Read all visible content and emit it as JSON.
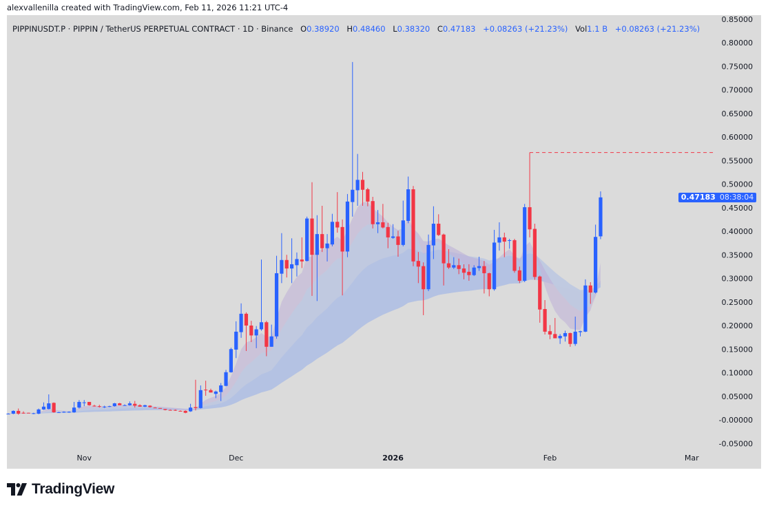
{
  "credit": "alexvallenilla created with TradingView.com, Feb 11, 2026 11:21 UTC-4",
  "legend": {
    "symbol": "PIPPINUSDT.P · PIPPIN / TetherUS PERPETUAL CONTRACT · 1D · Binance",
    "o_label": "O",
    "o": "0.38920",
    "h_label": "H",
    "h": "0.48460",
    "l_label": "L",
    "l": "0.38320",
    "c_label": "C",
    "c": "0.47183",
    "change": "+0.08263 (+21.23%)",
    "vol_label": "Vol",
    "vol": "1.1 B",
    "vol_change": "+0.08263 (+21.23%)"
  },
  "price_tag": {
    "price": "0.47183",
    "countdown": "08:38:04"
  },
  "logo": {
    "text": "TradingView"
  },
  "colors": {
    "up": "#2962ff",
    "down": "#f23645",
    "background": "#dbdbdb",
    "band": "#a9bbe6",
    "band_bear": "#c9a9d2",
    "marker": "#f23645"
  },
  "chart_data": {
    "type": "candlestick",
    "title": "",
    "ylim": [
      -0.07,
      0.85
    ],
    "grid": false,
    "high_marker": 0.567,
    "y_ticks": [
      "0.85000",
      "0.80000",
      "0.75000",
      "0.70000",
      "0.65000",
      "0.60000",
      "0.55000",
      "0.50000",
      "0.45000",
      "0.40000",
      "0.35000",
      "0.30000",
      "0.25000",
      "0.20000",
      "0.15000",
      "0.10000",
      "0.05000",
      "-0.00000",
      "-0.05000"
    ],
    "x_ticks": [
      {
        "label": "Nov",
        "date": "2025-11-01"
      },
      {
        "label": "Dec",
        "date": "2025-12-01"
      },
      {
        "label": "2026",
        "date": "2026-01-01"
      },
      {
        "label": "Feb",
        "date": "2026-02-01"
      },
      {
        "label": "Mar",
        "date": "2026-03-01"
      }
    ],
    "columns": [
      "date",
      "open",
      "high",
      "low",
      "close"
    ],
    "candles": [
      [
        "2025-10-17",
        0.013,
        0.014,
        0.012,
        0.013
      ],
      [
        "2025-10-18",
        0.013,
        0.02,
        0.012,
        0.019
      ],
      [
        "2025-10-19",
        0.019,
        0.024,
        0.011,
        0.013
      ],
      [
        "2025-10-20",
        0.015,
        0.018,
        0.013,
        0.014
      ],
      [
        "2025-10-21",
        0.015,
        0.015,
        0.014,
        0.014
      ],
      [
        "2025-10-22",
        0.013,
        0.015,
        0.012,
        0.014
      ],
      [
        "2025-10-23",
        0.013,
        0.024,
        0.012,
        0.022
      ],
      [
        "2025-10-24",
        0.022,
        0.037,
        0.021,
        0.028
      ],
      [
        "2025-10-25",
        0.023,
        0.054,
        0.022,
        0.035
      ],
      [
        "2025-10-26",
        0.036,
        0.037,
        0.015,
        0.016
      ],
      [
        "2025-10-27",
        0.016,
        0.017,
        0.015,
        0.016
      ],
      [
        "2025-10-28",
        0.016,
        0.018,
        0.015,
        0.017
      ],
      [
        "2025-10-29",
        0.016,
        0.018,
        0.015,
        0.017
      ],
      [
        "2025-10-30",
        0.016,
        0.038,
        0.015,
        0.026
      ],
      [
        "2025-10-31",
        0.026,
        0.042,
        0.024,
        0.038
      ],
      [
        "2025-11-01",
        0.036,
        0.042,
        0.029,
        0.037
      ],
      [
        "2025-11-02",
        0.038,
        0.038,
        0.03,
        0.031
      ],
      [
        "2025-11-03",
        0.03,
        0.032,
        0.028,
        0.029
      ],
      [
        "2025-11-04",
        0.029,
        0.032,
        0.026,
        0.028
      ],
      [
        "2025-11-05",
        0.027,
        0.03,
        0.025,
        0.028
      ],
      [
        "2025-11-06",
        0.028,
        0.03,
        0.027,
        0.029
      ],
      [
        "2025-11-07",
        0.029,
        0.036,
        0.028,
        0.035
      ],
      [
        "2025-11-08",
        0.035,
        0.036,
        0.031,
        0.031
      ],
      [
        "2025-11-09",
        0.031,
        0.033,
        0.03,
        0.031
      ],
      [
        "2025-11-10",
        0.031,
        0.039,
        0.03,
        0.035
      ],
      [
        "2025-11-11",
        0.034,
        0.04,
        0.026,
        0.03
      ],
      [
        "2025-11-12",
        0.031,
        0.033,
        0.028,
        0.028
      ],
      [
        "2025-11-13",
        0.028,
        0.032,
        0.027,
        0.031
      ],
      [
        "2025-11-14",
        0.03,
        0.031,
        0.026,
        0.027
      ],
      [
        "2025-11-15",
        0.026,
        0.027,
        0.025,
        0.025
      ],
      [
        "2025-11-16",
        0.025,
        0.025,
        0.024,
        0.024
      ],
      [
        "2025-11-17",
        0.023,
        0.023,
        0.02,
        0.021
      ],
      [
        "2025-11-18",
        0.021,
        0.022,
        0.02,
        0.02
      ],
      [
        "2025-11-19",
        0.021,
        0.022,
        0.019,
        0.02
      ],
      [
        "2025-11-20",
        0.019,
        0.02,
        0.018,
        0.018
      ],
      [
        "2025-11-21",
        0.019,
        0.02,
        0.014,
        0.015
      ],
      [
        "2025-11-22",
        0.018,
        0.034,
        0.017,
        0.026
      ],
      [
        "2025-11-23",
        0.027,
        0.085,
        0.02,
        0.025
      ],
      [
        "2025-11-24",
        0.025,
        0.073,
        0.024,
        0.063
      ],
      [
        "2025-11-25",
        0.064,
        0.083,
        0.051,
        0.063
      ],
      [
        "2025-11-26",
        0.063,
        0.066,
        0.058,
        0.058
      ],
      [
        "2025-11-27",
        0.055,
        0.062,
        0.046,
        0.06
      ],
      [
        "2025-11-28",
        0.059,
        0.078,
        0.04,
        0.073
      ],
      [
        "2025-11-29",
        0.072,
        0.106,
        0.071,
        0.101
      ],
      [
        "2025-11-30",
        0.101,
        0.153,
        0.1,
        0.15
      ],
      [
        "2025-12-01",
        0.149,
        0.209,
        0.131,
        0.187
      ],
      [
        "2025-12-02",
        0.186,
        0.247,
        0.174,
        0.225
      ],
      [
        "2025-12-03",
        0.225,
        0.228,
        0.146,
        0.2
      ],
      [
        "2025-12-04",
        0.2,
        0.21,
        0.165,
        0.179
      ],
      [
        "2025-12-05",
        0.179,
        0.199,
        0.152,
        0.192
      ],
      [
        "2025-12-06",
        0.192,
        0.34,
        0.189,
        0.207
      ],
      [
        "2025-12-07",
        0.207,
        0.21,
        0.135,
        0.155
      ],
      [
        "2025-12-08",
        0.155,
        0.202,
        0.155,
        0.177
      ],
      [
        "2025-12-09",
        0.177,
        0.348,
        0.172,
        0.311
      ],
      [
        "2025-12-10",
        0.31,
        0.396,
        0.29,
        0.339
      ],
      [
        "2025-12-11",
        0.339,
        0.35,
        0.302,
        0.321
      ],
      [
        "2025-12-12",
        0.321,
        0.385,
        0.29,
        0.33
      ],
      [
        "2025-12-13",
        0.328,
        0.355,
        0.304,
        0.341
      ],
      [
        "2025-12-14",
        0.34,
        0.387,
        0.322,
        0.336
      ],
      [
        "2025-12-15",
        0.337,
        0.431,
        0.336,
        0.427
      ],
      [
        "2025-12-16",
        0.427,
        0.504,
        0.263,
        0.35
      ],
      [
        "2025-12-17",
        0.35,
        0.434,
        0.252,
        0.394
      ],
      [
        "2025-12-18",
        0.394,
        0.454,
        0.356,
        0.364
      ],
      [
        "2025-12-19",
        0.364,
        0.394,
        0.336,
        0.374
      ],
      [
        "2025-12-20",
        0.372,
        0.437,
        0.368,
        0.42
      ],
      [
        "2025-12-21",
        0.42,
        0.483,
        0.397,
        0.408
      ],
      [
        "2025-12-22",
        0.409,
        0.425,
        0.264,
        0.357
      ],
      [
        "2025-12-23",
        0.357,
        0.479,
        0.345,
        0.463
      ],
      [
        "2025-12-24",
        0.462,
        0.759,
        0.431,
        0.488
      ],
      [
        "2025-12-25",
        0.487,
        0.564,
        0.454,
        0.509
      ],
      [
        "2025-12-26",
        0.509,
        0.526,
        0.454,
        0.488
      ],
      [
        "2025-12-27",
        0.489,
        0.492,
        0.453,
        0.463
      ],
      [
        "2025-12-28",
        0.464,
        0.473,
        0.406,
        0.415
      ],
      [
        "2025-12-29",
        0.415,
        0.445,
        0.396,
        0.419
      ],
      [
        "2025-12-30",
        0.419,
        0.458,
        0.406,
        0.408
      ],
      [
        "2025-12-31",
        0.409,
        0.418,
        0.364,
        0.387
      ],
      [
        "2026-01-01",
        0.386,
        0.415,
        0.384,
        0.389
      ],
      [
        "2026-01-02",
        0.389,
        0.401,
        0.346,
        0.371
      ],
      [
        "2026-01-03",
        0.371,
        0.465,
        0.368,
        0.423
      ],
      [
        "2026-01-04",
        0.422,
        0.516,
        0.417,
        0.489
      ],
      [
        "2026-01-05",
        0.489,
        0.496,
        0.326,
        0.336
      ],
      [
        "2026-01-06",
        0.337,
        0.356,
        0.29,
        0.325
      ],
      [
        "2026-01-07",
        0.326,
        0.334,
        0.222,
        0.277
      ],
      [
        "2026-01-08",
        0.277,
        0.393,
        0.273,
        0.371
      ],
      [
        "2026-01-09",
        0.37,
        0.453,
        0.341,
        0.416
      ],
      [
        "2026-01-10",
        0.416,
        0.436,
        0.39,
        0.392
      ],
      [
        "2026-01-11",
        0.393,
        0.395,
        0.285,
        0.332
      ],
      [
        "2026-01-12",
        0.332,
        0.362,
        0.32,
        0.323
      ],
      [
        "2026-01-13",
        0.323,
        0.345,
        0.32,
        0.328
      ],
      [
        "2026-01-14",
        0.328,
        0.342,
        0.309,
        0.32
      ],
      [
        "2026-01-15",
        0.321,
        0.33,
        0.298,
        0.312
      ],
      [
        "2026-01-16",
        0.314,
        0.33,
        0.295,
        0.307
      ],
      [
        "2026-01-17",
        0.307,
        0.328,
        0.305,
        0.323
      ],
      [
        "2026-01-18",
        0.322,
        0.346,
        0.316,
        0.326
      ],
      [
        "2026-01-19",
        0.326,
        0.337,
        0.268,
        0.311
      ],
      [
        "2026-01-20",
        0.311,
        0.312,
        0.262,
        0.277
      ],
      [
        "2026-01-21",
        0.277,
        0.403,
        0.274,
        0.376
      ],
      [
        "2026-01-22",
        0.376,
        0.419,
        0.359,
        0.387
      ],
      [
        "2026-01-23",
        0.387,
        0.397,
        0.345,
        0.378
      ],
      [
        "2026-01-24",
        0.38,
        0.384,
        0.363,
        0.381
      ],
      [
        "2026-01-25",
        0.381,
        0.384,
        0.312,
        0.316
      ],
      [
        "2026-01-26",
        0.317,
        0.325,
        0.29,
        0.295
      ],
      [
        "2026-01-27",
        0.295,
        0.458,
        0.292,
        0.451
      ],
      [
        "2026-01-28",
        0.451,
        0.567,
        0.387,
        0.404
      ],
      [
        "2026-01-29",
        0.405,
        0.416,
        0.297,
        0.303
      ],
      [
        "2026-01-30",
        0.304,
        0.306,
        0.206,
        0.234
      ],
      [
        "2026-01-31",
        0.235,
        0.254,
        0.181,
        0.187
      ],
      [
        "2026-02-01",
        0.188,
        0.201,
        0.171,
        0.181
      ],
      [
        "2026-02-02",
        0.182,
        0.216,
        0.173,
        0.173
      ],
      [
        "2026-02-03",
        0.173,
        0.182,
        0.161,
        0.178
      ],
      [
        "2026-02-04",
        0.177,
        0.189,
        0.166,
        0.184
      ],
      [
        "2026-02-05",
        0.184,
        0.185,
        0.155,
        0.161
      ],
      [
        "2026-02-06",
        0.161,
        0.219,
        0.157,
        0.187
      ],
      [
        "2026-02-07",
        0.186,
        0.189,
        0.177,
        0.188
      ],
      [
        "2026-02-08",
        0.187,
        0.298,
        0.186,
        0.285
      ],
      [
        "2026-02-09",
        0.285,
        0.292,
        0.246,
        0.27
      ],
      [
        "2026-02-10",
        0.27,
        0.414,
        0.268,
        0.388
      ],
      [
        "2026-02-11",
        0.3892,
        0.4846,
        0.3832,
        0.47183
      ]
    ]
  }
}
